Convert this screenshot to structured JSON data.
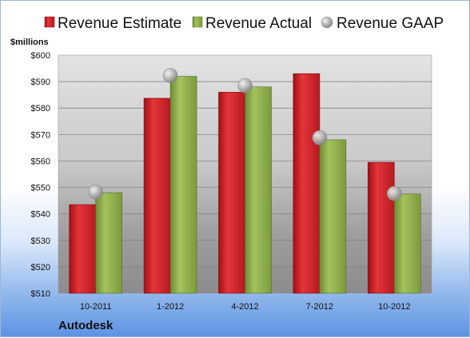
{
  "chart_data": {
    "type": "bar",
    "ylabel": "$millions",
    "company": "Autodesk",
    "categories": [
      "10-2011",
      "1-2012",
      "4-2012",
      "7-2012",
      "10-2012"
    ],
    "ylim": [
      510,
      600
    ],
    "yticks": [
      510,
      520,
      530,
      540,
      550,
      560,
      570,
      580,
      590,
      600
    ],
    "ytick_labels": [
      "$510",
      "$520",
      "$530",
      "$540",
      "$550",
      "$560",
      "$570",
      "$580",
      "$590",
      "$600"
    ],
    "grid": true,
    "legend_position": "top",
    "series": [
      {
        "name": "Revenue Estimate",
        "kind": "bar",
        "color": "#d8232a",
        "values": [
          543.5,
          583.7,
          586,
          593,
          559.5
        ]
      },
      {
        "name": "Revenue Actual",
        "kind": "bar",
        "color": "#8fb04a",
        "values": [
          548,
          592,
          588,
          568,
          547.5
        ]
      },
      {
        "name": "Revenue GAAP",
        "kind": "marker",
        "color": "#b8b8b8",
        "values": [
          548.3,
          592.3,
          588.5,
          568.8,
          547.7
        ]
      }
    ]
  }
}
